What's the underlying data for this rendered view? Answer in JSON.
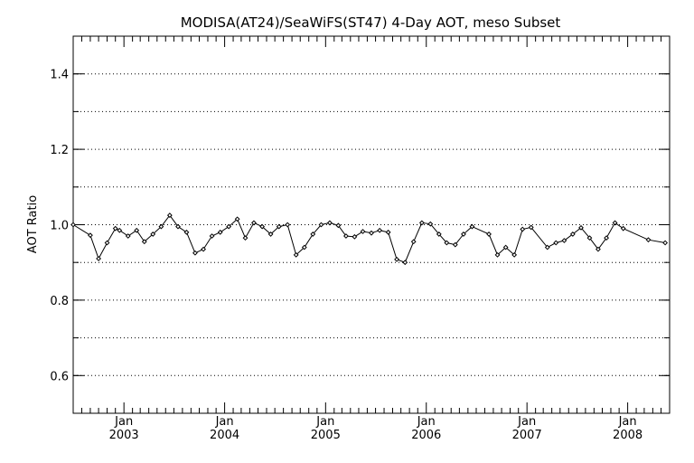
{
  "chart_data": {
    "type": "line",
    "title": "MODISA(AT24)/SeaWiFS(ST47) 4-Day AOT, meso Subset",
    "xlabel": "",
    "ylabel": "AOT Ratio",
    "xlim": [
      "2002-07-01",
      "2008-06-01"
    ],
    "ylim": [
      0.5,
      1.5
    ],
    "y_ticks": [
      0.6,
      0.8,
      1.0,
      1.2,
      1.4
    ],
    "y_tick_labels": [
      "0.6",
      "0.8",
      "1.0",
      "1.2",
      "1.4"
    ],
    "x_ticks": [
      {
        "date": "2003-01-01",
        "month": "Jan",
        "year": "2003"
      },
      {
        "date": "2004-01-01",
        "month": "Jan",
        "year": "2004"
      },
      {
        "date": "2005-01-01",
        "month": "Jan",
        "year": "2005"
      },
      {
        "date": "2006-01-01",
        "month": "Jan",
        "year": "2006"
      },
      {
        "date": "2007-01-01",
        "month": "Jan",
        "year": "2007"
      },
      {
        "date": "2008-01-01",
        "month": "Jan",
        "year": "2008"
      }
    ],
    "grid": "horizontal dotted",
    "marker": "diamond",
    "series": [
      {
        "x": [
          "2002-07-01",
          "2002-09-01",
          "2002-10-01",
          "2002-11-01",
          "2002-12-01",
          "2002-12-16",
          "2003-01-16",
          "2003-02-16",
          "2003-03-16",
          "2003-04-16",
          "2003-05-16",
          "2003-06-16",
          "2003-07-16",
          "2003-08-16",
          "2003-09-16",
          "2003-10-16",
          "2003-11-16",
          "2003-12-16",
          "2004-01-16",
          "2004-02-16",
          "2004-03-16",
          "2004-04-16",
          "2004-05-16",
          "2004-06-16",
          "2004-07-16",
          "2004-08-16",
          "2004-09-16",
          "2004-10-16",
          "2004-11-16",
          "2004-12-16",
          "2005-01-16",
          "2005-02-16",
          "2005-03-16",
          "2005-04-16",
          "2005-05-16",
          "2005-06-16",
          "2005-07-16",
          "2005-08-16",
          "2005-09-16",
          "2005-10-16",
          "2005-11-16",
          "2005-12-16",
          "2006-01-16",
          "2006-02-16",
          "2006-03-16",
          "2006-04-16",
          "2006-05-16",
          "2006-06-16",
          "2006-08-16",
          "2006-09-16",
          "2006-10-16",
          "2006-11-16",
          "2006-12-16",
          "2007-01-16",
          "2007-03-16",
          "2007-04-16",
          "2007-05-16",
          "2007-06-16",
          "2007-07-16",
          "2007-08-16",
          "2007-09-16",
          "2007-10-16",
          "2007-11-16",
          "2007-12-16",
          "2008-03-16",
          "2008-05-16"
        ],
        "y": [
          1.0,
          0.972,
          0.91,
          0.952,
          0.99,
          0.985,
          0.97,
          0.985,
          0.955,
          0.975,
          0.995,
          1.025,
          0.995,
          0.98,
          0.925,
          0.935,
          0.97,
          0.98,
          0.995,
          1.015,
          0.965,
          1.005,
          0.995,
          0.975,
          0.995,
          1.0,
          0.92,
          0.94,
          0.975,
          1.0,
          1.005,
          0.998,
          0.97,
          0.968,
          0.982,
          0.978,
          0.985,
          0.98,
          0.908,
          0.9,
          0.955,
          1.005,
          1.002,
          0.975,
          0.952,
          0.947,
          0.975,
          0.995,
          0.975,
          0.92,
          0.94,
          0.92,
          0.988,
          0.993,
          0.94,
          0.952,
          0.958,
          0.975,
          0.992,
          0.965,
          0.935,
          0.965,
          1.005,
          0.99,
          0.96,
          0.952
        ]
      }
    ]
  }
}
